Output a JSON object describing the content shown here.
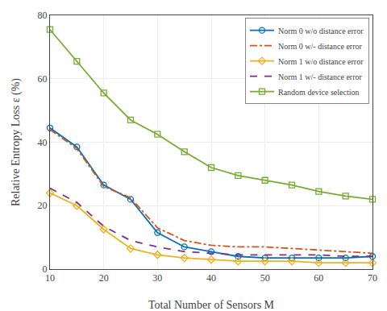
{
  "chart_data": {
    "type": "line",
    "x_label": "Total Number of Sensors M",
    "y_label": "Relative Entropy Loss ε (%)",
    "x": [
      10,
      15,
      20,
      25,
      30,
      35,
      40,
      45,
      50,
      55,
      60,
      65,
      70
    ],
    "series": [
      {
        "name": "Norm 0 w/o distance error",
        "color": "#0072BD",
        "marker": "circle",
        "line_style": "solid",
        "values": [
          44.5,
          38.5,
          26.5,
          22.0,
          11.5,
          7.0,
          5.5,
          4.0,
          3.5,
          3.5,
          3.5,
          3.5,
          4.0
        ]
      },
      {
        "name": "Norm 0 w/- distance error",
        "color": "#D95319",
        "marker": "none",
        "line_style": "dashdot",
        "values": [
          44.0,
          38.0,
          26.0,
          22.5,
          13.0,
          9.0,
          7.5,
          7.0,
          7.0,
          6.5,
          6.0,
          5.5,
          5.0
        ]
      },
      {
        "name": "Norm 1 w/o distance error",
        "color": "#EDB120",
        "marker": "diamond",
        "line_style": "solid",
        "values": [
          24.0,
          20.0,
          12.5,
          6.5,
          4.5,
          3.5,
          3.0,
          2.5,
          2.5,
          2.5,
          2.0,
          2.0,
          2.0
        ]
      },
      {
        "name": "Norm 1 w/- distance error",
        "color": "#7E2F8E",
        "marker": "none",
        "line_style": "dash",
        "values": [
          25.5,
          21.0,
          13.5,
          9.0,
          7.0,
          5.5,
          5.0,
          4.5,
          4.5,
          4.5,
          4.5,
          4.0,
          4.0
        ]
      },
      {
        "name": "Random device selection",
        "color": "#77AC30",
        "marker": "square",
        "line_style": "solid",
        "values": [
          75.5,
          65.5,
          55.5,
          47.0,
          42.5,
          37.0,
          32.0,
          29.5,
          28.0,
          26.5,
          24.5,
          23.0,
          22.0
        ]
      }
    ],
    "xlim": [
      10,
      70
    ],
    "ylim": [
      0,
      80
    ],
    "xticks": [
      10,
      20,
      30,
      40,
      50,
      60,
      70
    ],
    "yticks": [
      0,
      20,
      40,
      60,
      80
    ],
    "grid": true,
    "legend": "upper right"
  }
}
